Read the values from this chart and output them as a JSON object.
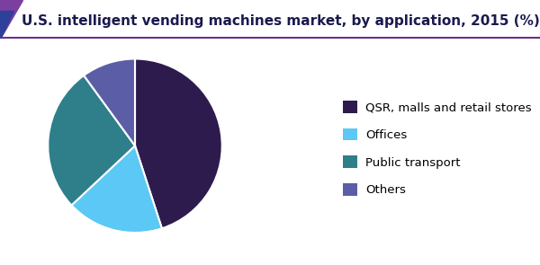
{
  "title": "U.S. intelligent vending machines market, by application, 2015 (%)",
  "slices": [
    {
      "label": "QSR, malls and retail stores",
      "value": 45,
      "color": "#2d1b4e"
    },
    {
      "label": "Offices",
      "value": 18,
      "color": "#5bc8f5"
    },
    {
      "label": "Public transport",
      "value": 27,
      "color": "#2e7f8a"
    },
    {
      "label": "Others",
      "value": 10,
      "color": "#5b5ea6"
    }
  ],
  "title_fontsize": 11,
  "legend_fontsize": 9.5,
  "background_color": "#ffffff",
  "startangle": 90,
  "figsize": [
    6.0,
    2.95
  ],
  "dpi": 100,
  "header_line_color": "#6b2d8b",
  "header_triangle_purple": "#7b3fa0",
  "header_triangle_blue": "#2e4099",
  "title_color": "#1a1a4e"
}
